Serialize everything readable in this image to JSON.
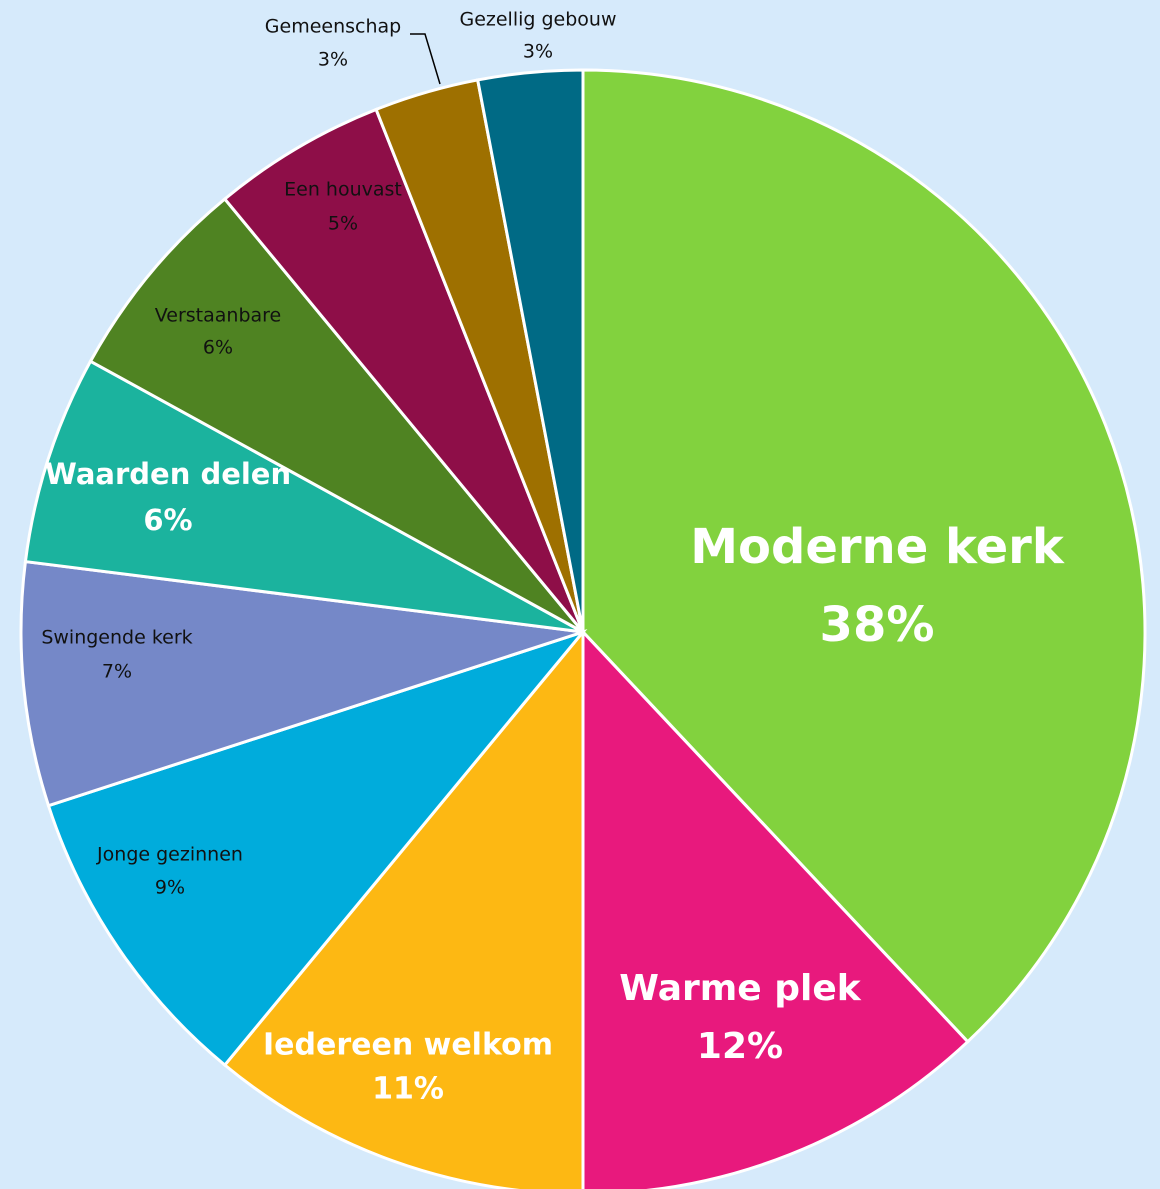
{
  "chart_data": {
    "type": "pie",
    "categories": [
      "Moderne kerk",
      "Warme plek",
      "Iedereen welkom",
      "Jonge gezinnen",
      "Swingende kerk",
      "Waarden delen",
      "Verstaanbare",
      "Een houvast",
      "Gemeenschap",
      "Gezellig gebouw"
    ],
    "values": [
      38,
      12,
      11,
      9,
      7,
      6,
      6,
      5,
      3,
      3
    ],
    "value_labels": [
      "38%",
      "12%",
      "11%",
      "9%",
      "7%",
      "6%",
      "6%",
      "5%",
      "3%",
      "3%"
    ],
    "colors": [
      "#82d23e",
      "#e8197d",
      "#fdb813",
      "#00acdc",
      "#7588c8",
      "#1bb39e",
      "#4f8322",
      "#8e0e48",
      "#9e7000",
      "#006a85"
    ]
  }
}
